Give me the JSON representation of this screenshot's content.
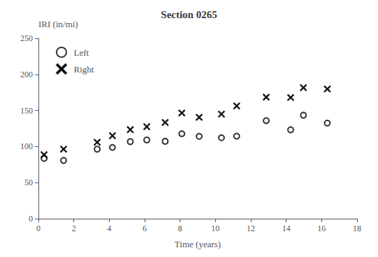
{
  "chart_data": {
    "type": "scatter",
    "title": "Section 0265",
    "xlabel": "Time (years)",
    "ylabel": "IRI (in/mi)",
    "series": [
      {
        "name": "Left",
        "marker": "circle",
        "color": "#000000",
        "x": [
          0.32,
          1.42,
          3.32,
          4.18,
          5.19,
          6.12,
          7.16,
          8.1,
          9.08,
          10.34,
          11.2,
          12.87,
          14.25,
          14.97,
          16.32
        ],
        "values": [
          83.58,
          80.72,
          96.34,
          98.68,
          106.76,
          109.13,
          107.23,
          117.74,
          114.11,
          112.18,
          114.36,
          135.87,
          123.21,
          143.42,
          132.5
        ]
      },
      {
        "name": "Right",
        "marker": "cross",
        "color": "#000000",
        "x": [
          0.32,
          1.42,
          3.32,
          4.18,
          5.19,
          6.12,
          7.16,
          8.1,
          9.08,
          10.34,
          11.2,
          12.87,
          14.25,
          14.97,
          16.32
        ],
        "values": [
          88.68,
          96.33,
          105.91,
          114.94,
          123.49,
          127.6,
          133.42,
          146.47,
          140.54,
          144.98,
          156.29,
          168.42,
          167.93,
          181.68,
          179.8
        ]
      }
    ],
    "xlim": [
      0,
      18
    ],
    "ylim": [
      0,
      250
    ],
    "xticks": [
      0,
      2,
      4,
      6,
      8,
      10,
      12,
      14,
      16,
      18
    ],
    "yticks": [
      0,
      50,
      100,
      150,
      200,
      250
    ],
    "grid": false,
    "legend": "upper left"
  }
}
